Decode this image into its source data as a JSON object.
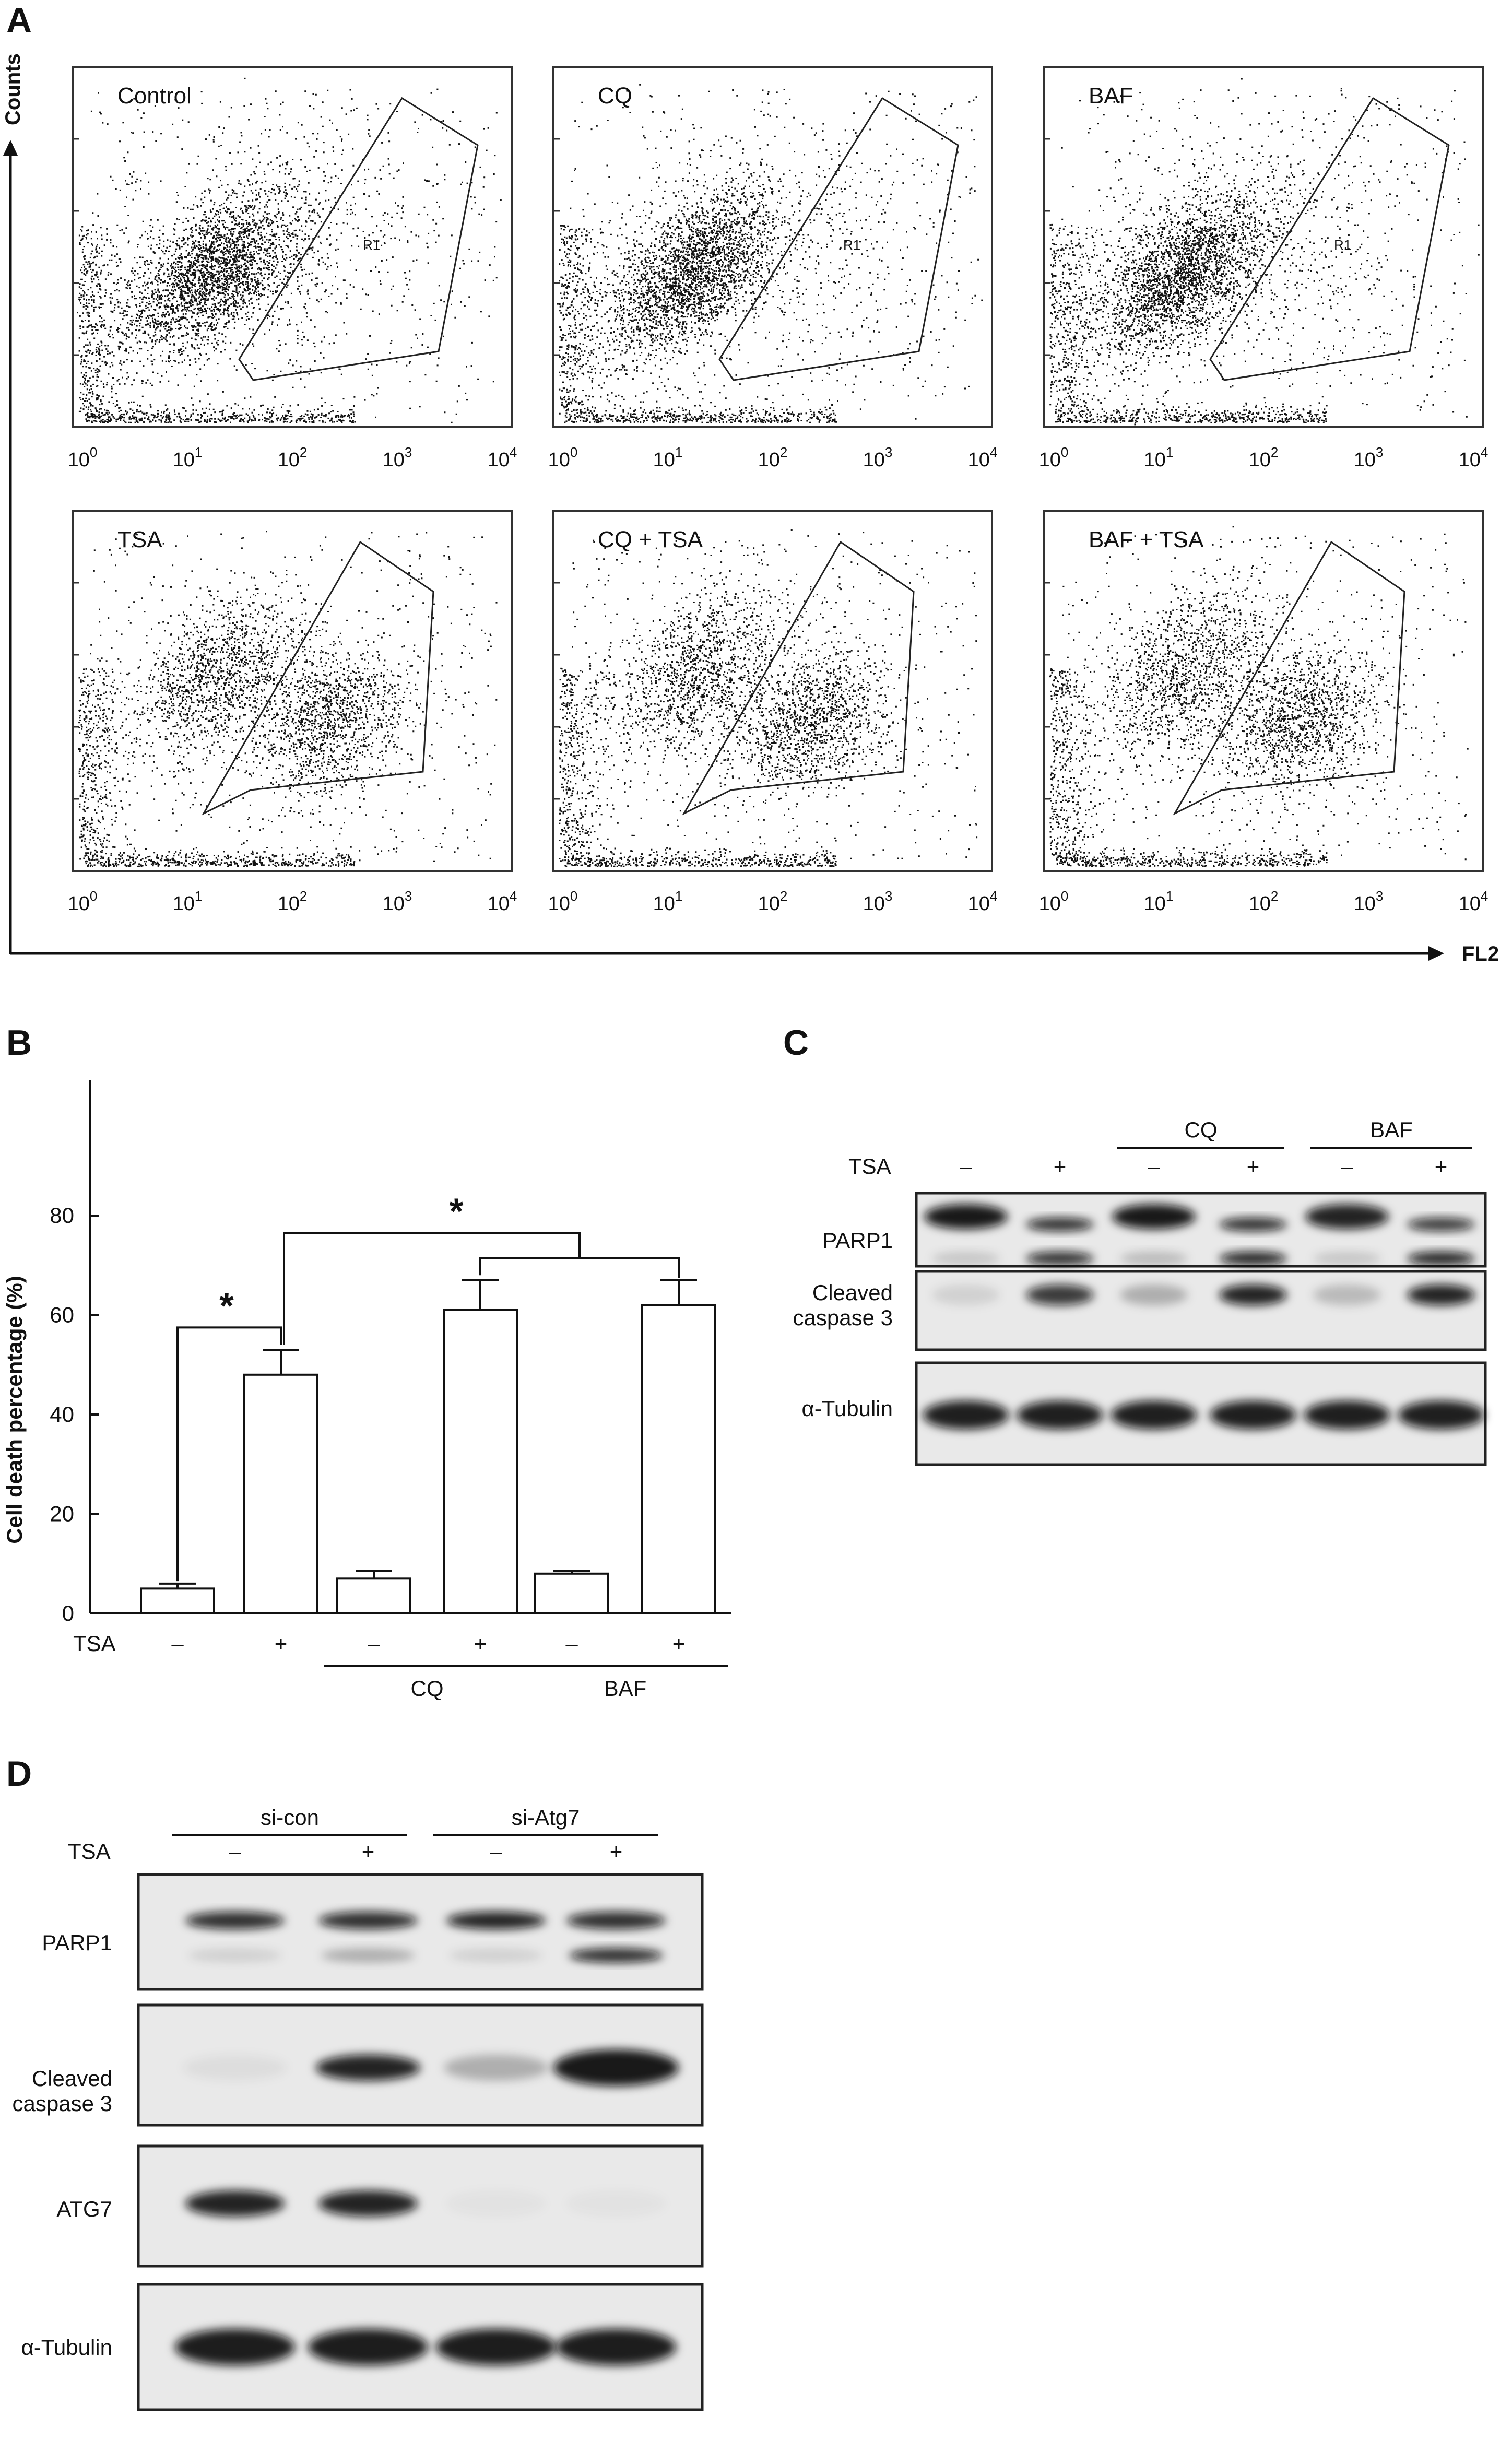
{
  "panels": {
    "A": "A",
    "B": "B",
    "C": "C",
    "D": "D"
  },
  "flow": {
    "y_axis_label": "Counts",
    "x_axis_label": "FL2",
    "tick_base": "10",
    "tick_exponents": [
      "0",
      "1",
      "2",
      "3",
      "4"
    ],
    "gate_label": "R1",
    "plots": [
      {
        "label": "Control",
        "row": 0,
        "col": 0,
        "dist": "single"
      },
      {
        "label": "CQ",
        "row": 0,
        "col": 1,
        "dist": "single"
      },
      {
        "label": "BAF",
        "row": 0,
        "col": 2,
        "dist": "single"
      },
      {
        "label": "TSA",
        "row": 1,
        "col": 0,
        "dist": "double"
      },
      {
        "label": "CQ + TSA",
        "row": 1,
        "col": 1,
        "dist": "double"
      },
      {
        "label": "BAF + TSA",
        "row": 1,
        "col": 2,
        "dist": "double"
      }
    ]
  },
  "chart_data": {
    "type": "bar",
    "ylabel": "Cell death percentage (%)",
    "ylim": [
      0,
      80
    ],
    "yticks": [
      "0",
      "20",
      "40",
      "60",
      "80"
    ],
    "row_label": "TSA",
    "categories": [
      "–",
      "+",
      "–",
      "+",
      "–",
      "+"
    ],
    "values": [
      5,
      48,
      7,
      61,
      8,
      62
    ],
    "errors": [
      1,
      5,
      1.5,
      6,
      0.5,
      5
    ],
    "groups": [
      {
        "label": "CQ",
        "from": 2,
        "to": 3
      },
      {
        "label": "BAF",
        "from": 4,
        "to": 5
      }
    ],
    "significance": [
      "*",
      "*"
    ]
  },
  "blot_c": {
    "group_labels": [
      "CQ",
      "BAF"
    ],
    "row_label": "TSA",
    "lanes": [
      "–",
      "+",
      "–",
      "+",
      "–",
      "+"
    ],
    "bands": [
      "PARP1",
      "Cleaved caspase 3",
      "α-Tubulin"
    ],
    "band_lines": [
      [
        "PARP1"
      ],
      [
        "Cleaved",
        "caspase 3"
      ],
      [
        "α-Tubulin"
      ]
    ]
  },
  "blot_d": {
    "group_labels": [
      "si-con",
      "si-Atg7"
    ],
    "row_label": "TSA",
    "lanes": [
      "–",
      "+",
      "–",
      "+"
    ],
    "band_lines": [
      [
        "PARP1"
      ],
      [
        "Cleaved",
        "caspase 3"
      ],
      [
        "ATG7"
      ],
      [
        "α-Tubulin"
      ]
    ]
  }
}
